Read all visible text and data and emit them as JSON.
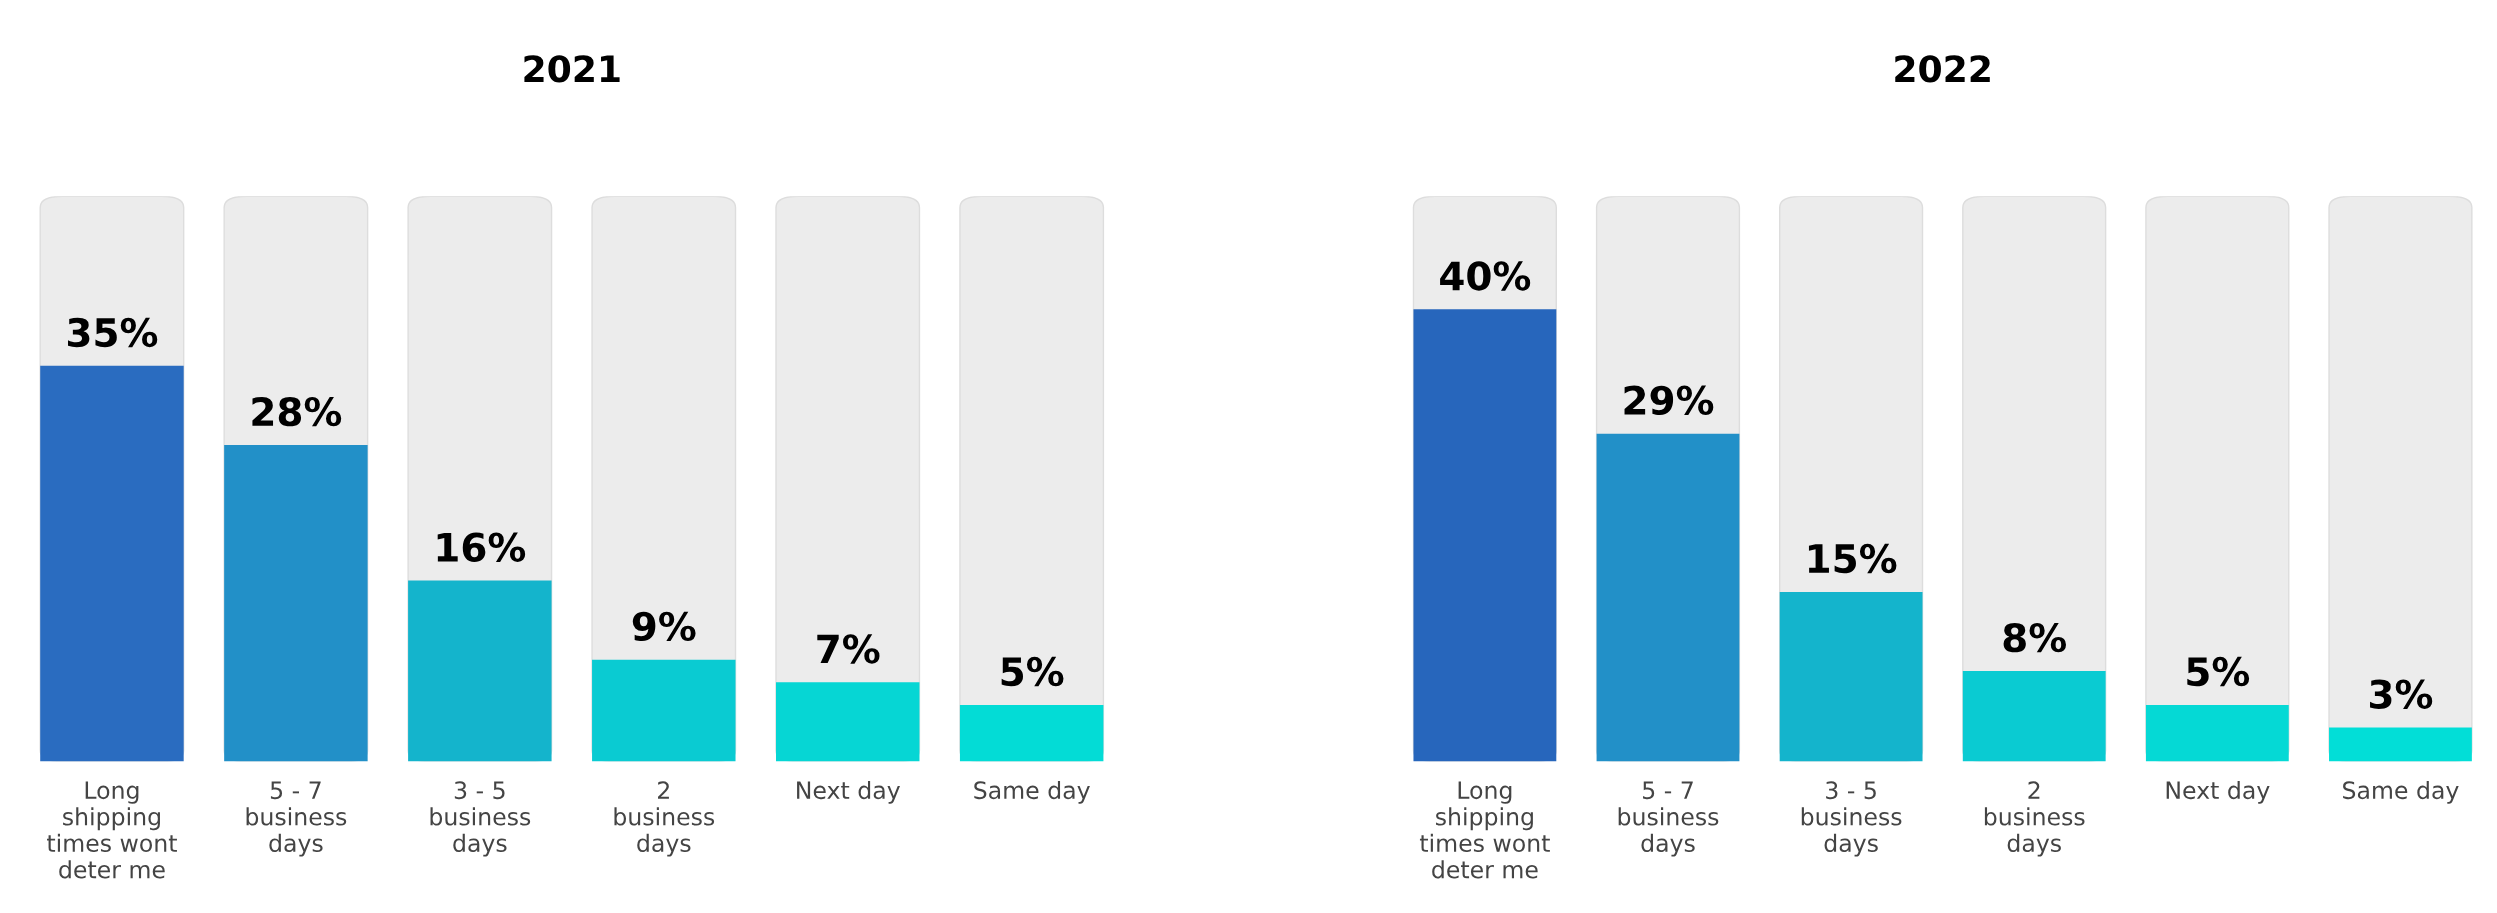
{
  "chart_data": [
    {
      "type": "bar",
      "title": "2021",
      "categories": [
        "Long\nshipping\ntimes wont\ndeter me",
        "5 - 7\nbusiness\ndays",
        "3 - 5\nbusiness\ndays",
        "2\nbusiness\ndays",
        "Next day",
        "Same day"
      ],
      "values": [
        35,
        28,
        16,
        9,
        7,
        5
      ],
      "colors": [
        "#2a6cc0",
        "#2290c8",
        "#14b4cc",
        "#0acbd2",
        "#06d6d4",
        "#03dcd6"
      ],
      "value_labels": [
        "35%",
        "28%",
        "16%",
        "9%",
        "7%",
        "5%"
      ],
      "tick_labels": "x",
      "grid": false,
      "legend": false
    },
    {
      "type": "bar",
      "title": "2022",
      "categories": [
        "Long\nshipping\ntimes wont\ndeter me",
        "5 - 7\nbusiness\ndays",
        "3 - 5\nbusiness\ndays",
        "2\nbusiness\ndays",
        "Next day",
        "Same day"
      ],
      "values": [
        40,
        29,
        15,
        8,
        5,
        3
      ],
      "colors": [
        "#2766bc",
        "#2290c8",
        "#14b4cc",
        "#0acbd2",
        "#05d9d5",
        "#02ded7"
      ],
      "value_labels": [
        "40%",
        "29%",
        "15%",
        "8%",
        "5%",
        "3%"
      ],
      "tick_labels": "x",
      "grid": false,
      "legend": false
    }
  ]
}
